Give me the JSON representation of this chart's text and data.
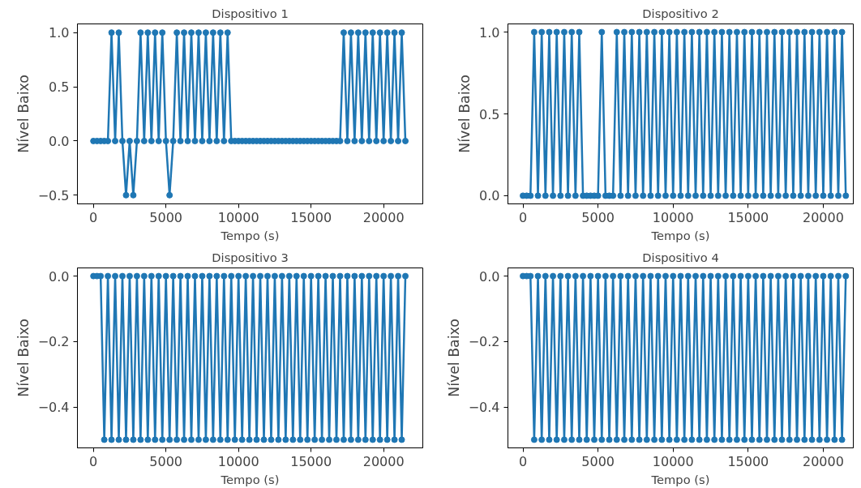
{
  "chart_data": [
    {
      "type": "line",
      "title": "Dispositivo 1",
      "xlabel": "Tempo (s)",
      "ylabel": "Nível Baixo",
      "color": "#1f77b4",
      "marker": "circle",
      "x": [
        0,
        250,
        500,
        750,
        1000,
        1250,
        1500,
        1750,
        2000,
        2250,
        2500,
        2750,
        3000,
        3250,
        3500,
        3750,
        4000,
        4250,
        4500,
        4750,
        5000,
        5250,
        5500,
        5750,
        6000,
        6250,
        6500,
        6750,
        7000,
        7250,
        7500,
        7750,
        8000,
        8250,
        8500,
        8750,
        9000,
        9250,
        9500,
        9750,
        10000,
        10250,
        10500,
        10750,
        11000,
        11250,
        11500,
        11750,
        12000,
        12250,
        12500,
        12750,
        13000,
        13250,
        13500,
        13750,
        14000,
        14250,
        14500,
        14750,
        15000,
        15250,
        15500,
        15750,
        16000,
        16250,
        16500,
        16750,
        17000,
        17250,
        17500,
        17750,
        18000,
        18250,
        18500,
        18750,
        19000,
        19250,
        19500,
        19750,
        20000,
        20250,
        20500,
        20750,
        21000,
        21250,
        21500
      ],
      "values": [
        0,
        0,
        0,
        0,
        0,
        1,
        0,
        1,
        0,
        -0.5,
        0,
        -0.5,
        0,
        1,
        0,
        1,
        0,
        1,
        0,
        1,
        0,
        -0.5,
        0,
        1,
        0,
        1,
        0,
        1,
        0,
        1,
        0,
        1,
        0,
        1,
        0,
        1,
        0,
        1,
        0,
        0,
        0,
        0,
        0,
        0,
        0,
        0,
        0,
        0,
        0,
        0,
        0,
        0,
        0,
        0,
        0,
        0,
        0,
        0,
        0,
        0,
        0,
        0,
        0,
        0,
        0,
        0,
        0,
        0,
        0,
        1,
        0,
        1,
        0,
        1,
        0,
        1,
        0,
        1,
        0,
        1,
        0,
        1,
        0,
        1,
        0,
        1,
        0
      ],
      "xlim": [
        -1100,
        22700
      ],
      "ylim": [
        -0.58,
        1.08
      ],
      "xticks": [
        0,
        5000,
        10000,
        15000,
        20000
      ],
      "yticks": [
        {
          "value": -0.5,
          "label": "−0.5"
        },
        {
          "value": 0,
          "label": "0.0"
        },
        {
          "value": 0.5,
          "label": "0.5"
        },
        {
          "value": 1,
          "label": "1.0"
        }
      ]
    },
    {
      "type": "line",
      "title": "Dispositivo 2",
      "xlabel": "Tempo (s)",
      "ylabel": "Nível Baixo",
      "color": "#1f77b4",
      "marker": "circle",
      "x": [
        0,
        250,
        500,
        750,
        1000,
        1250,
        1500,
        1750,
        2000,
        2250,
        2500,
        2750,
        3000,
        3250,
        3500,
        3750,
        4000,
        4250,
        4500,
        4750,
        5000,
        5250,
        5500,
        5750,
        6000,
        6250,
        6500,
        6750,
        7000,
        7250,
        7500,
        7750,
        8000,
        8250,
        8500,
        8750,
        9000,
        9250,
        9500,
        9750,
        10000,
        10250,
        10500,
        10750,
        11000,
        11250,
        11500,
        11750,
        12000,
        12250,
        12500,
        12750,
        13000,
        13250,
        13500,
        13750,
        14000,
        14250,
        14500,
        14750,
        15000,
        15250,
        15500,
        15750,
        16000,
        16250,
        16500,
        16750,
        17000,
        17250,
        17500,
        17750,
        18000,
        18250,
        18500,
        18750,
        19000,
        19250,
        19500,
        19750,
        20000,
        20250,
        20500,
        20750,
        21000,
        21250,
        21500
      ],
      "values": [
        0,
        0,
        0,
        1,
        0,
        1,
        0,
        1,
        0,
        1,
        0,
        1,
        0,
        1,
        0,
        1,
        0,
        0,
        0,
        0,
        0,
        1,
        0,
        0,
        0,
        1,
        0,
        1,
        0,
        1,
        0,
        1,
        0,
        1,
        0,
        1,
        0,
        1,
        0,
        1,
        0,
        1,
        0,
        1,
        0,
        1,
        0,
        1,
        0,
        1,
        0,
        1,
        0,
        1,
        0,
        1,
        0,
        1,
        0,
        1,
        0,
        1,
        0,
        1,
        0,
        1,
        0,
        1,
        0,
        1,
        0,
        1,
        0,
        1,
        0,
        1,
        0,
        1,
        0,
        1,
        0,
        1,
        0,
        1,
        0,
        1,
        0
      ],
      "xlim": [
        -1000,
        22000
      ],
      "ylim": [
        -0.05,
        1.05
      ],
      "xticks": [
        0,
        5000,
        10000,
        15000,
        20000
      ],
      "yticks": [
        {
          "value": 0,
          "label": "0.0"
        },
        {
          "value": 0.5,
          "label": "0.5"
        },
        {
          "value": 1,
          "label": "1.0"
        }
      ]
    },
    {
      "type": "line",
      "title": "Dispositivo 3",
      "xlabel": "Tempo (s)",
      "ylabel": "Nível Baixo",
      "color": "#1f77b4",
      "marker": "circle",
      "x": [
        0,
        250,
        500,
        750,
        1000,
        1250,
        1500,
        1750,
        2000,
        2250,
        2500,
        2750,
        3000,
        3250,
        3500,
        3750,
        4000,
        4250,
        4500,
        4750,
        5000,
        5250,
        5500,
        5750,
        6000,
        6250,
        6500,
        6750,
        7000,
        7250,
        7500,
        7750,
        8000,
        8250,
        8500,
        8750,
        9000,
        9250,
        9500,
        9750,
        10000,
        10250,
        10500,
        10750,
        11000,
        11250,
        11500,
        11750,
        12000,
        12250,
        12500,
        12750,
        13000,
        13250,
        13500,
        13750,
        14000,
        14250,
        14500,
        14750,
        15000,
        15250,
        15500,
        15750,
        16000,
        16250,
        16500,
        16750,
        17000,
        17250,
        17500,
        17750,
        18000,
        18250,
        18500,
        18750,
        19000,
        19250,
        19500,
        19750,
        20000,
        20250,
        20500,
        20750,
        21000,
        21250,
        21500
      ],
      "values": [
        0,
        0,
        0,
        -0.5,
        0,
        -0.5,
        0,
        -0.5,
        0,
        -0.5,
        0,
        -0.5,
        0,
        -0.5,
        0,
        -0.5,
        0,
        -0.5,
        0,
        -0.5,
        0,
        -0.5,
        0,
        -0.5,
        0,
        -0.5,
        0,
        -0.5,
        0,
        -0.5,
        0,
        -0.5,
        0,
        -0.5,
        0,
        -0.5,
        0,
        -0.5,
        0,
        -0.5,
        0,
        -0.5,
        0,
        -0.5,
        0,
        -0.5,
        0,
        -0.5,
        0,
        -0.5,
        0,
        -0.5,
        0,
        -0.5,
        0,
        -0.5,
        0,
        -0.5,
        0,
        -0.5,
        0,
        -0.5,
        0,
        -0.5,
        0,
        -0.5,
        0,
        -0.5,
        0,
        -0.5,
        0,
        -0.5,
        0,
        -0.5,
        0,
        -0.5,
        0,
        -0.5,
        0,
        -0.5,
        0,
        -0.5,
        0,
        -0.5,
        0,
        -0.5,
        0
      ],
      "xlim": [
        -1100,
        22700
      ],
      "ylim": [
        -0.525,
        0.025
      ],
      "xticks": [
        0,
        5000,
        10000,
        15000,
        20000
      ],
      "yticks": [
        {
          "value": -0.4,
          "label": "−0.4"
        },
        {
          "value": -0.2,
          "label": "−0.2"
        },
        {
          "value": 0,
          "label": "0.0"
        }
      ]
    },
    {
      "type": "line",
      "title": "Dispositivo 4",
      "xlabel": "Tempo (s)",
      "ylabel": "Nível Baixo",
      "color": "#1f77b4",
      "marker": "circle",
      "x": [
        0,
        250,
        500,
        750,
        1000,
        1250,
        1500,
        1750,
        2000,
        2250,
        2500,
        2750,
        3000,
        3250,
        3500,
        3750,
        4000,
        4250,
        4500,
        4750,
        5000,
        5250,
        5500,
        5750,
        6000,
        6250,
        6500,
        6750,
        7000,
        7250,
        7500,
        7750,
        8000,
        8250,
        8500,
        8750,
        9000,
        9250,
        9500,
        9750,
        10000,
        10250,
        10500,
        10750,
        11000,
        11250,
        11500,
        11750,
        12000,
        12250,
        12500,
        12750,
        13000,
        13250,
        13500,
        13750,
        14000,
        14250,
        14500,
        14750,
        15000,
        15250,
        15500,
        15750,
        16000,
        16250,
        16500,
        16750,
        17000,
        17250,
        17500,
        17750,
        18000,
        18250,
        18500,
        18750,
        19000,
        19250,
        19500,
        19750,
        20000,
        20250,
        20500,
        20750,
        21000,
        21250,
        21500
      ],
      "values": [
        0,
        0,
        0,
        -0.5,
        0,
        -0.5,
        0,
        -0.5,
        0,
        -0.5,
        0,
        -0.5,
        0,
        -0.5,
        0,
        -0.5,
        0,
        -0.5,
        0,
        -0.5,
        0,
        -0.5,
        0,
        -0.5,
        0,
        -0.5,
        0,
        -0.5,
        0,
        -0.5,
        0,
        -0.5,
        0,
        -0.5,
        0,
        -0.5,
        0,
        -0.5,
        0,
        -0.5,
        0,
        -0.5,
        0,
        -0.5,
        0,
        -0.5,
        0,
        -0.5,
        0,
        -0.5,
        0,
        -0.5,
        0,
        -0.5,
        0,
        -0.5,
        0,
        -0.5,
        0,
        -0.5,
        0,
        -0.5,
        0,
        -0.5,
        0,
        -0.5,
        0,
        -0.5,
        0,
        -0.5,
        0,
        -0.5,
        0,
        -0.5,
        0,
        -0.5,
        0,
        -0.5,
        0,
        -0.5,
        0,
        -0.5,
        0,
        -0.5,
        0,
        -0.5,
        0
      ],
      "xlim": [
        -1000,
        22000
      ],
      "ylim": [
        -0.525,
        0.025
      ],
      "xticks": [
        0,
        5000,
        10000,
        15000,
        20000
      ],
      "yticks": [
        {
          "value": -0.4,
          "label": "−0.4"
        },
        {
          "value": -0.2,
          "label": "−0.2"
        },
        {
          "value": 0,
          "label": "0.0"
        }
      ]
    }
  ]
}
